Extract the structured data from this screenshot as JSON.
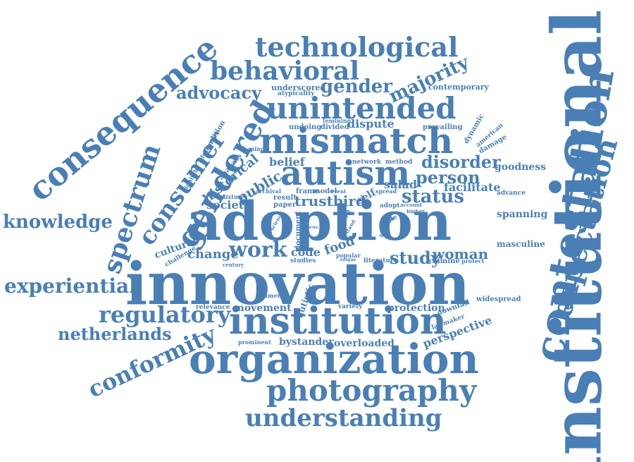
{
  "color": "#4a7fb5",
  "words": [
    {
      "text": "institutional"
    },
    {
      "text": "innovation"
    },
    {
      "text": "adoption"
    },
    {
      "text": "organization"
    },
    {
      "text": "contestation"
    },
    {
      "text": "institution"
    },
    {
      "text": "mismatch"
    },
    {
      "text": "consequence"
    },
    {
      "text": "autism"
    },
    {
      "text": "photography"
    },
    {
      "text": "unintended"
    },
    {
      "text": "technological"
    },
    {
      "text": "behavioral"
    },
    {
      "text": "expectation"
    },
    {
      "text": "understanding"
    },
    {
      "text": "gendered"
    },
    {
      "text": "spectrum"
    },
    {
      "text": "consumer"
    },
    {
      "text": "regulatory"
    },
    {
      "text": "experiential"
    },
    {
      "text": "conformity"
    },
    {
      "text": "knowledge"
    },
    {
      "text": "netherlands"
    },
    {
      "text": "advocacy"
    },
    {
      "text": "gender"
    },
    {
      "text": "majority"
    },
    {
      "text": "work"
    },
    {
      "text": "status"
    },
    {
      "text": "disorder"
    },
    {
      "text": "person"
    },
    {
      "text": "trustbird"
    },
    {
      "text": "study"
    },
    {
      "text": "woman"
    },
    {
      "text": "public"
    },
    {
      "text": "historical"
    },
    {
      "text": "society"
    },
    {
      "text": "change"
    },
    {
      "text": "code"
    },
    {
      "text": "belief"
    },
    {
      "text": "salad"
    },
    {
      "text": "facilitate"
    },
    {
      "text": "movement"
    },
    {
      "text": "protection"
    },
    {
      "text": "overloaded"
    },
    {
      "text": "bystander"
    },
    {
      "text": "perspective"
    },
    {
      "text": "food"
    },
    {
      "text": "dispute"
    },
    {
      "text": "cultural"
    },
    {
      "text": "spanning"
    },
    {
      "text": "goodness"
    },
    {
      "text": "masculine"
    },
    {
      "text": "contemporary"
    },
    {
      "text": "underscored"
    },
    {
      "text": "atypicality"
    },
    {
      "text": "network"
    },
    {
      "text": "method"
    },
    {
      "text": "feminine"
    },
    {
      "text": "divided"
    },
    {
      "text": "undoing"
    },
    {
      "text": "prevailing"
    },
    {
      "text": "dynamic"
    },
    {
      "text": "american"
    },
    {
      "text": "damage"
    },
    {
      "text": "condition"
    },
    {
      "text": "advanced"
    },
    {
      "text": "shaping"
    },
    {
      "text": "highlight"
    },
    {
      "text": "analysis"
    },
    {
      "text": "mixture"
    },
    {
      "text": "archival"
    },
    {
      "text": "frame"
    },
    {
      "text": "model"
    },
    {
      "text": "result"
    },
    {
      "text": "paper"
    },
    {
      "text": "self"
    },
    {
      "text": "adopt"
    },
    {
      "text": "spread"
    },
    {
      "text": "advance"
    },
    {
      "text": "document"
    },
    {
      "text": "case"
    },
    {
      "text": "studies"
    },
    {
      "text": "popular"
    },
    {
      "text": "literature"
    },
    {
      "text": "examine"
    },
    {
      "text": "protect"
    },
    {
      "text": "autistic"
    },
    {
      "text": "variety"
    },
    {
      "text": "relevance"
    },
    {
      "text": "america"
    },
    {
      "text": "downfall"
    },
    {
      "text": "lawmaker"
    },
    {
      "text": "widespread"
    },
    {
      "text": "prominent"
    },
    {
      "text": "challenge"
    },
    {
      "text": "century"
    },
    {
      "text": "role"
    },
    {
      "text": "account"
    },
    {
      "text": "higher"
    },
    {
      "text": "taste"
    },
    {
      "text": "event"
    },
    {
      "text": "science"
    },
    {
      "text": "focus"
    },
    {
      "text": "stand"
    },
    {
      "text": "building"
    },
    {
      "text": "unique"
    }
  ]
}
